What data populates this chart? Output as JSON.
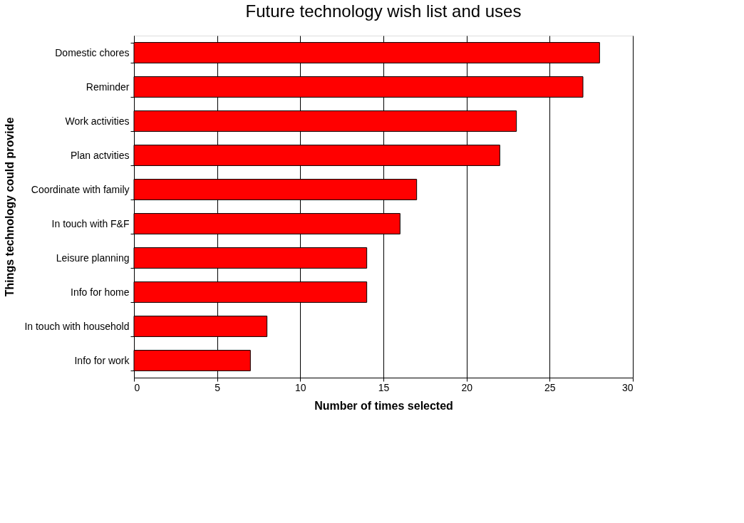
{
  "chart_data": {
    "type": "bar",
    "orientation": "horizontal",
    "title": "Future technology wish list and uses",
    "xlabel": "Number of times selected",
    "ylabel": "Things technology could provide",
    "categories": [
      "Domestic chores",
      "Reminder",
      "Work activities",
      "Plan actvities",
      "Coordinate with family",
      "In touch with F&F",
      "Leisure planning",
      "Info for home",
      "In touch with household",
      "Info for work"
    ],
    "values": [
      28,
      27,
      23,
      22,
      17,
      16,
      14,
      14,
      8,
      7
    ],
    "color": "#ff0000",
    "xlim": [
      0,
      30
    ],
    "xticks": [
      0,
      5,
      10,
      15,
      20,
      25,
      30
    ],
    "grid": "x",
    "legend": false
  }
}
